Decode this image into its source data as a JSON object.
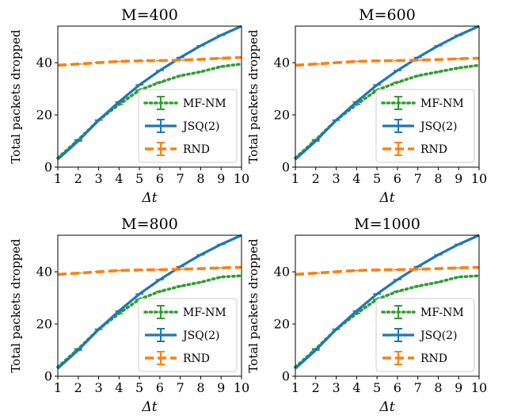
{
  "chart_data": [
    {
      "type": "line",
      "title": "M=400",
      "xlabel": "Δt",
      "ylabel": "Total packets dropped",
      "x": [
        1,
        2,
        3,
        4,
        5,
        6,
        7,
        8,
        9,
        10
      ],
      "xlim": [
        1,
        10
      ],
      "ylim": [
        0,
        54
      ],
      "xticks": [
        "1",
        "2",
        "3",
        "4",
        "5",
        "6",
        "7",
        "8",
        "9",
        "10"
      ],
      "yticks": [
        "0",
        "20",
        "40"
      ],
      "legend_position": "lower-right",
      "series": [
        {
          "name": "MF-NM",
          "style": "dotted",
          "color": "#2ca02c",
          "values": [
            3.5,
            10.5,
            18.0,
            24.0,
            29.5,
            32.5,
            35.0,
            36.5,
            38.5,
            39.5
          ]
        },
        {
          "name": "JSQ(2)",
          "style": "solid",
          "color": "#1f77b4",
          "values": [
            3.0,
            10.0,
            18.0,
            25.0,
            31.5,
            37.0,
            42.0,
            46.5,
            50.5,
            54.0
          ]
        },
        {
          "name": "RND",
          "style": "dashed",
          "color": "#ff7f0e",
          "values": [
            39.0,
            39.5,
            40.0,
            40.5,
            40.7,
            40.8,
            41.0,
            41.3,
            41.7,
            42.0
          ]
        }
      ]
    },
    {
      "type": "line",
      "title": "M=600",
      "xlabel": "Δt",
      "ylabel": "Total packets dropped",
      "x": [
        1,
        2,
        3,
        4,
        5,
        6,
        7,
        8,
        9,
        10
      ],
      "xlim": [
        1,
        10
      ],
      "ylim": [
        0,
        54
      ],
      "xticks": [
        "1",
        "2",
        "3",
        "4",
        "5",
        "6",
        "7",
        "8",
        "9",
        "10"
      ],
      "yticks": [
        "0",
        "20",
        "40"
      ],
      "legend_position": "lower-right",
      "series": [
        {
          "name": "MF-NM",
          "style": "dotted",
          "color": "#2ca02c",
          "values": [
            3.5,
            10.5,
            18.0,
            24.0,
            29.5,
            32.5,
            35.0,
            36.5,
            38.0,
            39.0
          ]
        },
        {
          "name": "JSQ(2)",
          "style": "solid",
          "color": "#1f77b4",
          "values": [
            3.0,
            10.0,
            18.0,
            25.0,
            31.5,
            37.0,
            42.0,
            46.5,
            50.5,
            54.0
          ]
        },
        {
          "name": "RND",
          "style": "dashed",
          "color": "#ff7f0e",
          "values": [
            39.0,
            39.5,
            40.0,
            40.5,
            40.7,
            40.8,
            41.0,
            41.2,
            41.5,
            41.7
          ]
        }
      ]
    },
    {
      "type": "line",
      "title": "M=800",
      "xlabel": "Δt",
      "ylabel": "Total packets dropped",
      "x": [
        1,
        2,
        3,
        4,
        5,
        6,
        7,
        8,
        9,
        10
      ],
      "xlim": [
        1,
        10
      ],
      "ylim": [
        0,
        54
      ],
      "xticks": [
        "1",
        "2",
        "3",
        "4",
        "5",
        "6",
        "7",
        "8",
        "9",
        "10"
      ],
      "yticks": [
        "0",
        "20",
        "40"
      ],
      "legend_position": "lower-right",
      "series": [
        {
          "name": "MF-NM",
          "style": "dotted",
          "color": "#2ca02c",
          "values": [
            3.5,
            10.5,
            18.0,
            24.0,
            29.5,
            32.5,
            34.5,
            36.0,
            38.0,
            38.5
          ]
        },
        {
          "name": "JSQ(2)",
          "style": "solid",
          "color": "#1f77b4",
          "values": [
            3.0,
            10.0,
            18.0,
            25.0,
            31.5,
            37.0,
            42.0,
            46.5,
            50.5,
            54.0
          ]
        },
        {
          "name": "RND",
          "style": "dashed",
          "color": "#ff7f0e",
          "values": [
            39.0,
            39.5,
            40.0,
            40.5,
            40.7,
            40.8,
            41.0,
            41.2,
            41.5,
            41.7
          ]
        }
      ]
    },
    {
      "type": "line",
      "title": "M=1000",
      "xlabel": "Δt",
      "ylabel": "Total packets dropped",
      "x": [
        1,
        2,
        3,
        4,
        5,
        6,
        7,
        8,
        9,
        10
      ],
      "xlim": [
        1,
        10
      ],
      "ylim": [
        0,
        54
      ],
      "xticks": [
        "1",
        "2",
        "3",
        "4",
        "5",
        "6",
        "7",
        "8",
        "9",
        "10"
      ],
      "yticks": [
        "0",
        "20",
        "40"
      ],
      "legend_position": "lower-right",
      "series": [
        {
          "name": "MF-NM",
          "style": "dotted",
          "color": "#2ca02c",
          "values": [
            3.5,
            10.5,
            18.0,
            24.0,
            29.5,
            32.5,
            34.5,
            36.0,
            38.0,
            38.5
          ]
        },
        {
          "name": "JSQ(2)",
          "style": "solid",
          "color": "#1f77b4",
          "values": [
            3.0,
            10.0,
            18.0,
            25.0,
            31.5,
            37.0,
            42.0,
            46.5,
            50.5,
            54.0
          ]
        },
        {
          "name": "RND",
          "style": "dashed",
          "color": "#ff7f0e",
          "values": [
            39.0,
            39.5,
            40.0,
            40.5,
            40.7,
            40.8,
            41.0,
            41.2,
            41.5,
            41.7
          ]
        }
      ]
    }
  ]
}
